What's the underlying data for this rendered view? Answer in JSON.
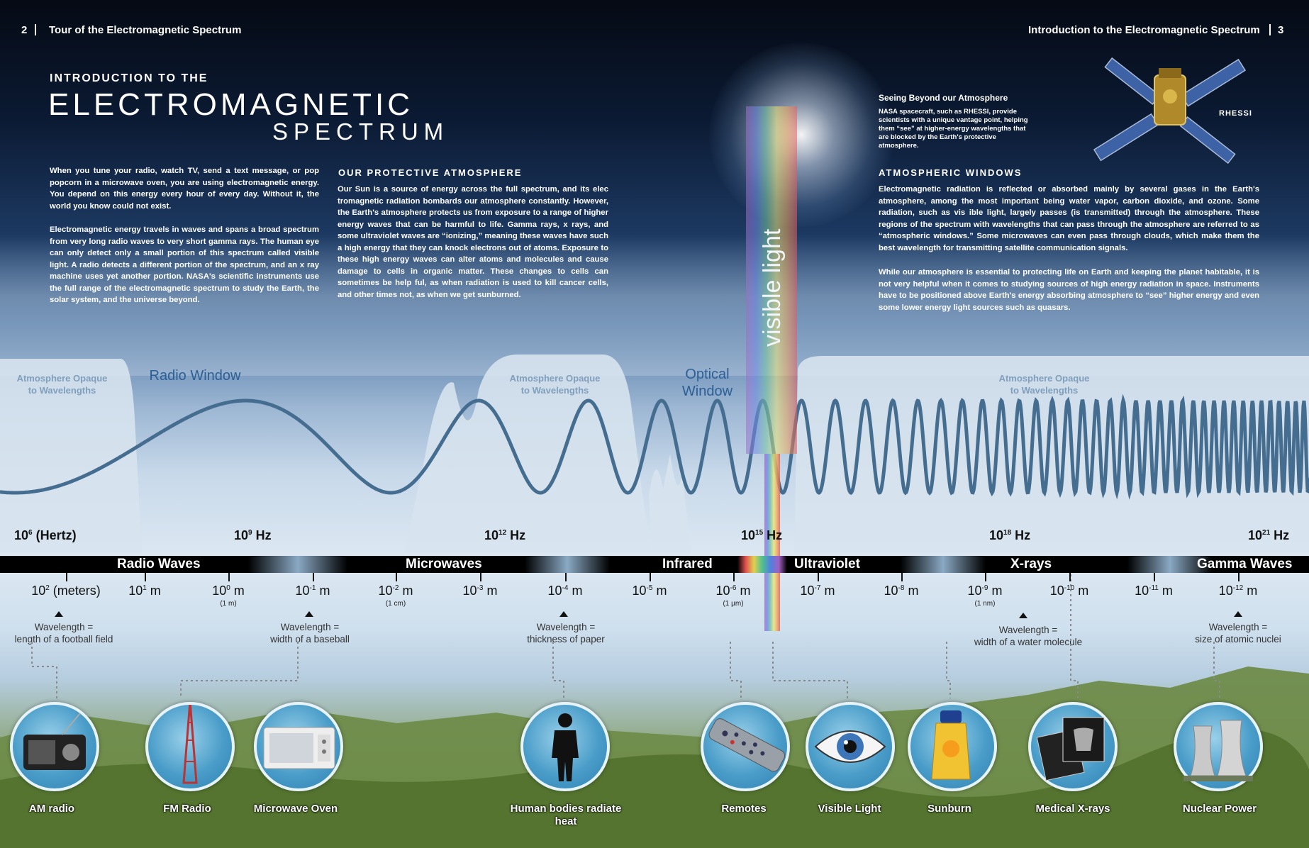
{
  "header": {
    "left_page": "2",
    "left_title": "Tour of the Electromagnetic Spectrum",
    "right_title": "Introduction to the Electromagnetic Spectrum",
    "right_page": "3"
  },
  "title": {
    "line1": "INTRODUCTION TO THE",
    "line2": "ELECTROMAGNETIC",
    "line3": "SPECTRUM"
  },
  "intro": {
    "p1": "When you tune your radio, watch TV, send a text message, or pop popcorn in a microwave oven, you are using electromagnetic energy. You depend on this energy every hour of every day. Without it, the world you know could not exist.",
    "p2": "Electromagnetic energy travels in waves and spans a broad spectrum from very long radio waves to very short gamma rays. The human eye can only detect only a small portion of this spectrum called visible light. A radio detects a different portion of the spectrum, and an x ray machine uses yet another portion. NASA's scientific instruments use the full range of the electromagnetic spectrum to study the Earth, the solar system, and the universe beyond."
  },
  "atmosphere": {
    "heading": "OUR PROTECTIVE ATMOSPHERE",
    "text": "Our Sun is a source of energy across the full spectrum, and its elec tromagnetic radiation bombards our atmosphere constantly. However, the Earth's atmosphere protects us from exposure to a range of higher energy waves that can be harmful to life. Gamma rays, x rays, and some ultraviolet waves are “ionizing,” meaning these waves have such a high energy that they can knock electrons out of atoms. Exposure to these high energy waves can alter atoms and molecules and cause damage to cells in organic matter. These changes to cells can sometimes be help ful, as when radiation is used to kill cancer cells, and other times not, as when we get sunburned."
  },
  "beyond": {
    "heading": "Seeing Beyond our Atmosphere",
    "text": "NASA spacecraft, such as RHESSI, provide scientists with a unique vantage point, helping them “see” at higher-energy wavelengths that are blocked by the Earth's protective atmosphere.",
    "satellite_label": "RHESSI"
  },
  "windows": {
    "heading": "ATMOSPHERIC WINDOWS",
    "p1": "Electromagnetic radiation is reflected or absorbed mainly by several gases in the Earth's atmosphere, among the most important being water vapor, carbon dioxide, and ozone. Some radiation, such as vis ible light, largely passes (is transmitted) through the atmosphere. These regions of the spectrum with wavelengths that can pass through the atmosphere are referred to as “atmospheric windows.” Some microwaves can even pass through clouds, which make them the best wavelength for transmitting satellite communication signals.",
    "p2": "While our atmosphere is essential to protecting life on Earth and keeping the planet habitable, it is not very helpful when it comes to studying sources of high energy radiation in space. Instruments have to be positioned above Earth's energy absorbing atmosphere to “see” higher energy and even some lower energy light sources such as quasars."
  },
  "visible_light_label": "visible light",
  "opacity": {
    "opaque1": [
      "Atmosphere Opaque",
      "to Wavelengths"
    ],
    "radio_window": "Radio Window",
    "opaque2": [
      "Atmosphere Opaque",
      "to Wavelengths"
    ],
    "optical_window": [
      "Optical",
      "Window"
    ],
    "opaque3": [
      "Atmosphere Opaque",
      "to Wavelengths"
    ]
  },
  "frequencies": [
    {
      "base": "10",
      "exp": "6",
      "unit": "(Hertz)"
    },
    {
      "base": "10",
      "exp": "9",
      "unit": "Hz"
    },
    {
      "base": "10",
      "exp": "12",
      "unit": "Hz"
    },
    {
      "base": "10",
      "exp": "15",
      "unit": "Hz"
    },
    {
      "base": "10",
      "exp": "18",
      "unit": "Hz"
    },
    {
      "base": "10",
      "exp": "21",
      "unit": "Hz"
    }
  ],
  "bands": [
    "Radio Waves",
    "Microwaves",
    "Infrared",
    "Ultraviolet",
    "X-rays",
    "Gamma Waves"
  ],
  "wavelengths": [
    {
      "base": "10",
      "exp": "2",
      "unit": "(meters)",
      "sub": ""
    },
    {
      "base": "10",
      "exp": "1",
      "unit": "m",
      "sub": ""
    },
    {
      "base": "10",
      "exp": "0",
      "unit": "m",
      "sub": "(1 m)"
    },
    {
      "base": "10",
      "exp": "-1",
      "unit": "m",
      "sub": ""
    },
    {
      "base": "10",
      "exp": "-2",
      "unit": "m",
      "sub": "(1 cm)"
    },
    {
      "base": "10",
      "exp": "-3",
      "unit": "m",
      "sub": ""
    },
    {
      "base": "10",
      "exp": "-4",
      "unit": "m",
      "sub": ""
    },
    {
      "base": "10",
      "exp": "-5",
      "unit": "m",
      "sub": ""
    },
    {
      "base": "10",
      "exp": "-6",
      "unit": "m",
      "sub": "(1 µm)"
    },
    {
      "base": "10",
      "exp": "-7",
      "unit": "m",
      "sub": ""
    },
    {
      "base": "10",
      "exp": "-8",
      "unit": "m",
      "sub": ""
    },
    {
      "base": "10",
      "exp": "-9",
      "unit": "m",
      "sub": "(1 nm)"
    },
    {
      "base": "10",
      "exp": "-10",
      "unit": "m",
      "sub": ""
    },
    {
      "base": "10",
      "exp": "-11",
      "unit": "m",
      "sub": ""
    },
    {
      "base": "10",
      "exp": "-12",
      "unit": "m",
      "sub": ""
    }
  ],
  "comparisons": [
    [
      "Wavelength =",
      "length of a football field"
    ],
    [
      "Wavelength =",
      "width of a baseball"
    ],
    [
      "Wavelength =",
      "thickness of paper"
    ],
    [
      "Wavelength =",
      "width of a water molecule"
    ],
    [
      "Wavelength =",
      "size of atomic nuclei"
    ]
  ],
  "examples": [
    "AM radio",
    "FM Radio",
    "Microwave Oven",
    "Human bodies radiate heat",
    "Remotes",
    "Visible Light",
    "Sunburn",
    "Medical X-rays",
    "Nuclear Power"
  ],
  "colors": {
    "wave": "#456d8f",
    "opaque": "#d7e3ee",
    "circle": "#4a9dc9",
    "bar": "#000000"
  }
}
